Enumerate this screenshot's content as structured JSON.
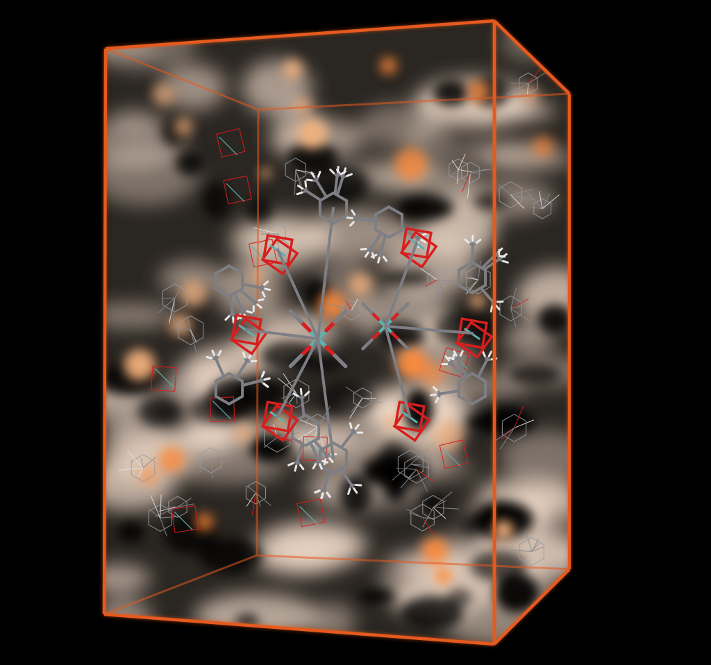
{
  "image": {
    "subject": "unit-cell-visualization",
    "background_color": "#000000",
    "unit_cell_edge_color": "#e65a1e",
    "density_cloud_colors": [
      "#f2dccb",
      "#f4b27e",
      "#ff8a3a"
    ],
    "atom_colors": {
      "carbon": "#7d7f85",
      "hydrogen": "#e8e8e8",
      "oxygen": "#d81e1e",
      "metal": "#5fb0b0"
    },
    "icons": [
      "unit-cell-box-icon",
      "molecule-icon",
      "density-cloud-icon"
    ]
  }
}
